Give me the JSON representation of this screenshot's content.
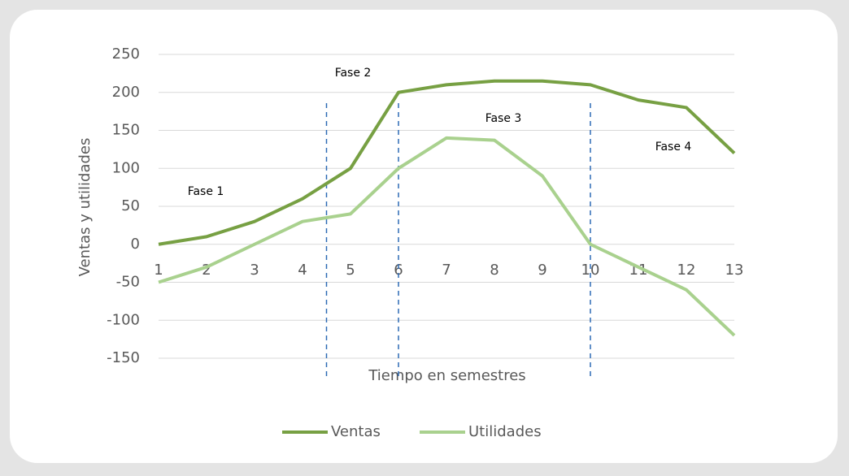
{
  "chart_data": {
    "type": "line",
    "x": [
      1,
      2,
      3,
      4,
      5,
      6,
      7,
      8,
      9,
      10,
      11,
      12,
      13
    ],
    "series": [
      {
        "name": "Ventas",
        "color": "#77a043",
        "values": [
          0,
          10,
          30,
          60,
          100,
          200,
          210,
          215,
          215,
          210,
          190,
          180,
          120
        ]
      },
      {
        "name": "Utilidades",
        "color": "#a9d18e",
        "values": [
          -50,
          -30,
          0,
          30,
          40,
          100,
          140,
          137,
          90,
          0,
          -30,
          -60,
          -120
        ]
      }
    ],
    "xlim": [
      1,
      13
    ],
    "xticks": [
      1,
      2,
      3,
      4,
      5,
      6,
      7,
      8,
      9,
      10,
      11,
      12,
      13
    ],
    "ylim": [
      -150,
      250
    ],
    "yticks": [
      -150,
      -100,
      -50,
      0,
      50,
      100,
      150,
      200,
      250
    ],
    "grid": true,
    "x_label": "Tiempo en semestres",
    "y_label": "Ventas y utilidades",
    "phase_boundaries": [
      4.5,
      6,
      10
    ],
    "annotations": [
      "Fase 1",
      "Fase 2",
      "Fase 3",
      "Fase 4"
    ],
    "legend": "bottom"
  }
}
